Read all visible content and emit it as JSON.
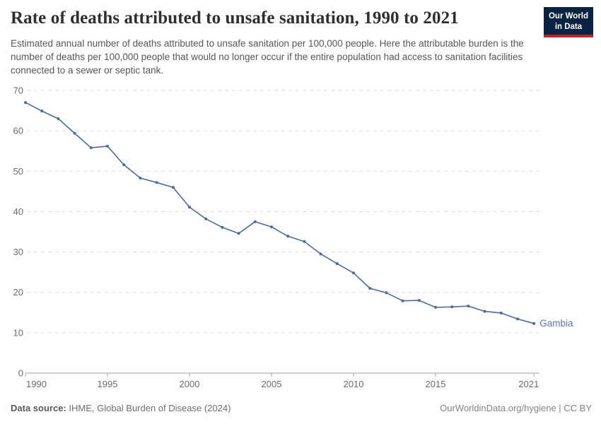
{
  "header": {
    "title": "Rate of deaths attributed to unsafe sanitation, 1990 to 2021",
    "subtitle": "Estimated annual number of deaths attributed to unsafe sanitation per 100,000 people. Here the attributable burden is the number of deaths per 100,000 people that would no longer occur if the entire population had access to sanitation facilities connected to a sewer or septic tank.",
    "logo": {
      "line1": "Our World",
      "line2": "in Data",
      "bg_color": "#0a2342",
      "stripe_color": "#bc2430"
    }
  },
  "chart_data": {
    "type": "line",
    "title": "Rate of deaths attributed to unsafe sanitation, 1990 to 2021",
    "xlabel": "",
    "ylabel": "",
    "ylim": [
      0,
      70
    ],
    "yticks": [
      0,
      10,
      20,
      30,
      40,
      50,
      60,
      70
    ],
    "xticks": [
      1990,
      1995,
      2000,
      2005,
      2010,
      2015,
      2021
    ],
    "grid": "horizontal-dashed",
    "legend_position": "end-of-line-label",
    "x": [
      1990,
      1991,
      1992,
      1993,
      1994,
      1995,
      1996,
      1997,
      1998,
      1999,
      2000,
      2001,
      2002,
      2003,
      2004,
      2005,
      2006,
      2007,
      2008,
      2009,
      2010,
      2011,
      2012,
      2013,
      2014,
      2015,
      2016,
      2017,
      2018,
      2019,
      2020,
      2021
    ],
    "series": [
      {
        "name": "Gambia",
        "values": [
          67.0,
          64.9,
          63.0,
          59.4,
          55.8,
          56.2,
          51.6,
          48.3,
          47.2,
          46.0,
          41.1,
          38.2,
          36.1,
          34.6,
          37.5,
          36.2,
          33.9,
          32.6,
          29.5,
          27.1,
          24.8,
          21.0,
          19.9,
          17.9,
          18.0,
          16.3,
          16.4,
          16.6,
          15.3,
          14.9,
          13.4,
          12.3
        ]
      }
    ]
  },
  "colors": {
    "line": "#4c6b9c",
    "point": "#4c6b9c",
    "entity_label": "#5878a8",
    "grid": "#dddddd",
    "axis": "#a3a3a3",
    "tick_label": "#6b6b6b"
  },
  "footer": {
    "datasource_label": "Data source:",
    "datasource": " IHME, Global Burden of Disease (2024)",
    "link": "OurWorldinData.org/hygiene | CC BY"
  }
}
